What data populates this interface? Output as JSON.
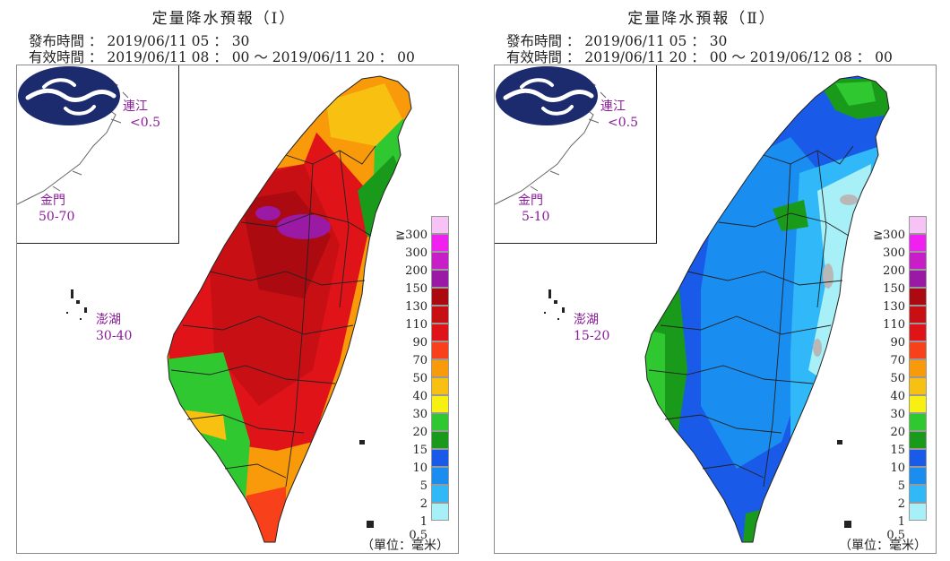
{
  "panels": [
    {
      "id": "I",
      "title": "定量降水預報（Ⅰ）",
      "issued": "發布時間 ： 2019/06/11  05 ： 30",
      "valid": "有效時間 ： 2019/06/11  08 ： 00 〜 2019/06/11  20 ： 00",
      "islands": [
        {
          "name": "連江",
          "value": "<0.5"
        },
        {
          "name": "金門",
          "value": "50-70"
        },
        {
          "name": "澎湖",
          "value": "30-40"
        }
      ],
      "unit": "（單位：毫米）"
    },
    {
      "id": "II",
      "title": "定量降水預報（Ⅱ）",
      "issued": "發布時間 ： 2019/06/11  05 ： 30",
      "valid": "有效時間 ： 2019/06/11  20 ： 00 〜 2019/06/12  08 ： 00",
      "islands": [
        {
          "name": "連江",
          "value": "<0.5"
        },
        {
          "name": "金門",
          "value": "5-10"
        },
        {
          "name": "澎湖",
          "value": "15-20"
        }
      ],
      "unit": "（單位：毫米）"
    }
  ],
  "legend": [
    {
      "label": "≧300",
      "color": "#f7c3f7"
    },
    {
      "label": "300",
      "color": "#f020f0"
    },
    {
      "label": "200",
      "color": "#c81ec8"
    },
    {
      "label": "150",
      "color": "#9a1aa6"
    },
    {
      "label": "130",
      "color": "#aa0a10"
    },
    {
      "label": "110",
      "color": "#c81014"
    },
    {
      "label": "90",
      "color": "#e01418"
    },
    {
      "label": "70",
      "color": "#f8401a"
    },
    {
      "label": "50",
      "color": "#f89a0a"
    },
    {
      "label": "40",
      "color": "#f8c010"
    },
    {
      "label": "30",
      "color": "#f8f010"
    },
    {
      "label": "20",
      "color": "#30c830"
    },
    {
      "label": "15",
      "color": "#1a9a1a"
    },
    {
      "label": "10",
      "color": "#1a5ae8"
    },
    {
      "label": "5",
      "color": "#1a8ef0"
    },
    {
      "label": "2",
      "color": "#30b8f8"
    },
    {
      "label": "1",
      "color": "#a8f0f8"
    },
    {
      "label": "0.5",
      "color": "#b8b8b8"
    }
  ]
}
